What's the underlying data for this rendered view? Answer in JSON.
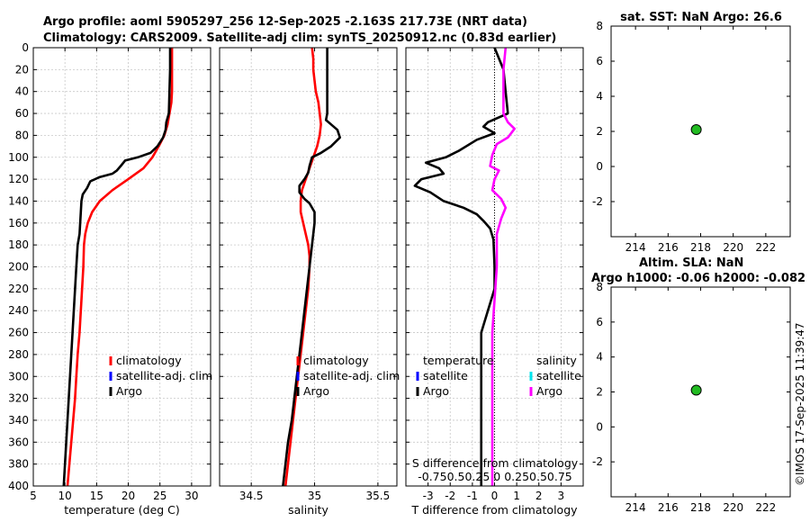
{
  "header": {
    "title_line1": "Argo profile: aoml 5905297_256 12-Sep-2025 -2.163S 217.73E (NRT data)",
    "title_line2": "Climatology: CARS2009. Satellite-adj clim: synTS_20250912.nc (0.83d earlier)",
    "sst_title": "sat. SST: NaN Argo: 26.6",
    "sla_title_line1": "Altim. SLA: NaN",
    "sla_title_line2": "Argo h1000: -0.06 h2000: -0.082",
    "stamp": "©IMOS 17-Sep-2025 11:39:47"
  },
  "colors": {
    "climatology": "#ff0000",
    "satellite_adj": "#0000ff",
    "argo": "#000000",
    "salinity_argo": "#ff00ff",
    "salinity_satellite": "#00e5ee",
    "marker_fill": "#22bb22",
    "grid": "#c8c8c8"
  },
  "chart_data": [
    {
      "id": "temperature",
      "type": "line",
      "xlabel": "temperature (deg C)",
      "ylabel": "",
      "xlim": [
        5,
        33
      ],
      "ylim": [
        400,
        0
      ],
      "xticks": [
        5,
        10,
        15,
        20,
        25,
        30
      ],
      "yticks": [
        0,
        20,
        40,
        60,
        80,
        100,
        120,
        140,
        160,
        180,
        200,
        220,
        240,
        260,
        280,
        300,
        320,
        340,
        360,
        380,
        400
      ],
      "legend": [
        "climatology",
        "satellite-adj. clim",
        "Argo"
      ],
      "series": [
        {
          "name": "climatology",
          "color": "#ff0000",
          "points": [
            [
              26.9,
              0
            ],
            [
              26.9,
              20
            ],
            [
              26.9,
              40
            ],
            [
              26.8,
              50
            ],
            [
              26.5,
              60
            ],
            [
              26.2,
              70
            ],
            [
              25.7,
              80
            ],
            [
              24.8,
              90
            ],
            [
              23.8,
              100
            ],
            [
              22.4,
              110
            ],
            [
              20.0,
              120
            ],
            [
              17.5,
              130
            ],
            [
              15.5,
              140
            ],
            [
              14.3,
              150
            ],
            [
              13.6,
              160
            ],
            [
              13.2,
              170
            ],
            [
              13.0,
              180
            ],
            [
              12.9,
              200
            ],
            [
              12.7,
              220
            ],
            [
              12.5,
              240
            ],
            [
              12.3,
              260
            ],
            [
              12.0,
              280
            ],
            [
              11.8,
              300
            ],
            [
              11.6,
              320
            ],
            [
              11.3,
              340
            ],
            [
              11.0,
              360
            ],
            [
              10.7,
              380
            ],
            [
              10.4,
              400
            ]
          ]
        },
        {
          "name": "Argo",
          "color": "#000000",
          "points": [
            [
              26.6,
              0
            ],
            [
              26.6,
              20
            ],
            [
              26.5,
              40
            ],
            [
              26.4,
              60
            ],
            [
              26.0,
              68
            ],
            [
              25.9,
              75
            ],
            [
              25.5,
              82
            ],
            [
              24.6,
              90
            ],
            [
              23.5,
              96
            ],
            [
              21.5,
              100
            ],
            [
              19.5,
              103
            ],
            [
              18.8,
              108
            ],
            [
              18.2,
              112
            ],
            [
              17.5,
              115
            ],
            [
              15.5,
              118
            ],
            [
              14.0,
              122
            ],
            [
              13.5,
              128
            ],
            [
              12.8,
              134
            ],
            [
              12.6,
              140
            ],
            [
              12.5,
              150
            ],
            [
              12.4,
              160
            ],
            [
              12.3,
              170
            ],
            [
              12.0,
              180
            ],
            [
              11.8,
              200
            ],
            [
              11.6,
              220
            ],
            [
              11.4,
              240
            ],
            [
              11.2,
              260
            ],
            [
              11.0,
              280
            ],
            [
              10.8,
              300
            ],
            [
              10.6,
              320
            ],
            [
              10.4,
              340
            ],
            [
              10.2,
              360
            ],
            [
              10.0,
              380
            ],
            [
              9.8,
              400
            ]
          ]
        }
      ]
    },
    {
      "id": "salinity",
      "type": "line",
      "xlabel": "salinity",
      "ylabel": "",
      "xlim": [
        34.25,
        35.65
      ],
      "ylim": [
        400,
        0
      ],
      "xticks": [
        34.5,
        35,
        35.5
      ],
      "legend": [
        "climatology",
        "satellite-adj. clim",
        "Argo"
      ],
      "series": [
        {
          "name": "climatology",
          "color": "#ff0000",
          "points": [
            [
              34.98,
              0
            ],
            [
              34.99,
              10
            ],
            [
              34.99,
              20
            ],
            [
              35.0,
              30
            ],
            [
              35.01,
              40
            ],
            [
              35.03,
              50
            ],
            [
              35.04,
              60
            ],
            [
              35.05,
              70
            ],
            [
              35.04,
              80
            ],
            [
              35.02,
              90
            ],
            [
              34.99,
              100
            ],
            [
              34.96,
              110
            ],
            [
              34.93,
              120
            ],
            [
              34.9,
              130
            ],
            [
              34.89,
              140
            ],
            [
              34.89,
              150
            ],
            [
              34.91,
              160
            ],
            [
              34.93,
              170
            ],
            [
              34.95,
              180
            ],
            [
              34.96,
              190
            ],
            [
              34.96,
              200
            ],
            [
              34.95,
              220
            ],
            [
              34.93,
              240
            ],
            [
              34.91,
              260
            ],
            [
              34.89,
              280
            ],
            [
              34.87,
              300
            ],
            [
              34.85,
              320
            ],
            [
              34.83,
              340
            ],
            [
              34.81,
              360
            ],
            [
              34.79,
              380
            ],
            [
              34.77,
              400
            ]
          ]
        },
        {
          "name": "Argo",
          "color": "#000000",
          "points": [
            [
              35.1,
              0
            ],
            [
              35.1,
              20
            ],
            [
              35.1,
              40
            ],
            [
              35.1,
              60
            ],
            [
              35.09,
              66
            ],
            [
              35.13,
              70
            ],
            [
              35.18,
              75
            ],
            [
              35.2,
              82
            ],
            [
              35.13,
              90
            ],
            [
              35.05,
              96
            ],
            [
              34.98,
              100
            ],
            [
              34.96,
              108
            ],
            [
              34.95,
              114
            ],
            [
              34.92,
              120
            ],
            [
              34.88,
              126
            ],
            [
              34.88,
              132
            ],
            [
              34.92,
              138
            ],
            [
              34.96,
              142
            ],
            [
              35.0,
              150
            ],
            [
              35.0,
              160
            ],
            [
              34.99,
              170
            ],
            [
              34.98,
              180
            ],
            [
              34.96,
              200
            ],
            [
              34.94,
              220
            ],
            [
              34.92,
              240
            ],
            [
              34.9,
              260
            ],
            [
              34.88,
              280
            ],
            [
              34.86,
              300
            ],
            [
              34.84,
              320
            ],
            [
              34.82,
              340
            ],
            [
              34.79,
              360
            ],
            [
              34.77,
              380
            ],
            [
              34.75,
              400
            ]
          ]
        }
      ]
    },
    {
      "id": "difference",
      "type": "line",
      "xlabel": "T difference from climatology",
      "top_xlabel": "S difference from climatology",
      "top_xticks_text": "-0.750.50.25 0  0.250.50.75",
      "xlim": [
        -4,
        4
      ],
      "ylim": [
        400,
        0
      ],
      "xticks": [
        -3,
        -2,
        -1,
        0,
        1,
        2,
        3
      ],
      "legend_temperature_title": "temperature",
      "legend_salinity_title": "salinity",
      "legend_temperature": [
        "satellite",
        "Argo"
      ],
      "legend_salinity": [
        "satellite",
        "Argo"
      ],
      "series": [
        {
          "name": "T Argo - clim",
          "color": "#000000",
          "points": [
            [
              0.0,
              0
            ],
            [
              0.4,
              20
            ],
            [
              0.5,
              40
            ],
            [
              0.6,
              60
            ],
            [
              -0.3,
              68
            ],
            [
              -0.5,
              72
            ],
            [
              0,
              78
            ],
            [
              -0.8,
              84
            ],
            [
              -1.6,
              94
            ],
            [
              -2.2,
              100
            ],
            [
              -3.1,
              105
            ],
            [
              -2.5,
              110
            ],
            [
              -2.3,
              115
            ],
            [
              -3.3,
              120
            ],
            [
              -3.6,
              126
            ],
            [
              -2.9,
              132
            ],
            [
              -2.3,
              140
            ],
            [
              -1.4,
              146
            ],
            [
              -0.8,
              152
            ],
            [
              -0.5,
              158
            ],
            [
              -0.2,
              165
            ],
            [
              -0.05,
              175
            ],
            [
              0.0,
              200
            ],
            [
              0.0,
              220
            ],
            [
              -0.3,
              240
            ],
            [
              -0.6,
              260
            ],
            [
              -0.6,
              280
            ],
            [
              -0.6,
              300
            ],
            [
              -0.6,
              320
            ],
            [
              -0.6,
              340
            ],
            [
              -0.6,
              360
            ],
            [
              -0.6,
              380
            ],
            [
              -0.6,
              400
            ]
          ]
        },
        {
          "name": "S Argo - clim",
          "color": "#ff00ff",
          "points": [
            [
              0.5,
              0
            ],
            [
              0.4,
              20
            ],
            [
              0.4,
              40
            ],
            [
              0.4,
              60
            ],
            [
              0.6,
              68
            ],
            [
              0.9,
              74
            ],
            [
              0.6,
              82
            ],
            [
              0.1,
              88
            ],
            [
              -0.1,
              98
            ],
            [
              -0.2,
              108
            ],
            [
              0.2,
              112
            ],
            [
              0.0,
              120
            ],
            [
              -0.1,
              130
            ],
            [
              0.3,
              138
            ],
            [
              0.5,
              146
            ],
            [
              0.3,
              156
            ],
            [
              0.1,
              170
            ],
            [
              0.1,
              200
            ],
            [
              0.0,
              230
            ],
            [
              -0.1,
              260
            ],
            [
              -0.1,
              300
            ],
            [
              -0.1,
              340
            ],
            [
              -0.1,
              380
            ],
            [
              -0.1,
              400
            ]
          ]
        }
      ]
    },
    {
      "id": "sst_panel",
      "type": "scatter",
      "title": "sat. SST: NaN Argo: 26.6",
      "xlim": [
        212.5,
        223.5
      ],
      "ylim": [
        -4,
        8
      ],
      "xticks": [
        214,
        216,
        218,
        220,
        222
      ],
      "yticks": [
        -2,
        0,
        2,
        4,
        6,
        8
      ],
      "points": [
        [
          217.73,
          2.1
        ]
      ]
    },
    {
      "id": "sla_panel",
      "type": "scatter",
      "title": "Altim. SLA: NaN",
      "xlim": [
        212.5,
        223.5
      ],
      "ylim": [
        -4,
        8
      ],
      "xticks": [
        214,
        216,
        218,
        220,
        222
      ],
      "yticks": [
        -2,
        0,
        2,
        4,
        6,
        8
      ],
      "points": [
        [
          217.73,
          2.1
        ]
      ]
    }
  ]
}
